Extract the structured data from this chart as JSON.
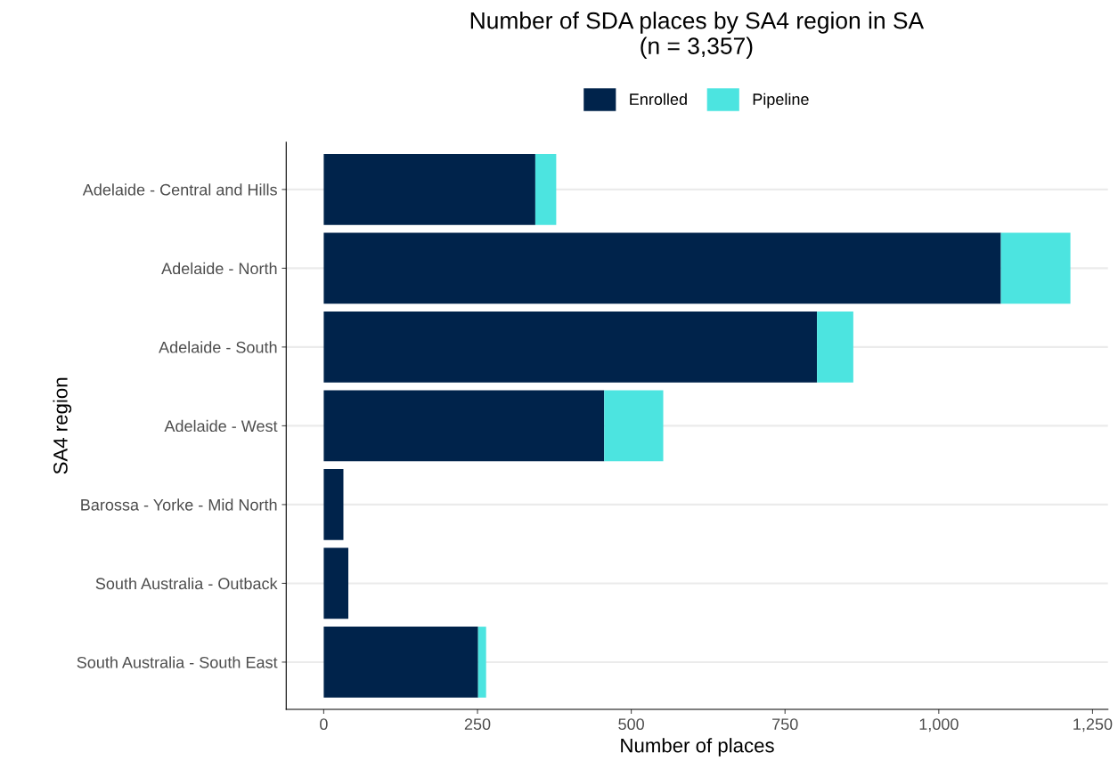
{
  "chart_data": {
    "type": "bar",
    "orientation": "horizontal",
    "stacked": true,
    "title": "Number of SDA places by SA4 region in SA\n(n = 3,357)",
    "xlabel": "Number of places",
    "ylabel": "SA4 region",
    "categories": [
      "Adelaide - Central and Hills",
      "Adelaide - North",
      "Adelaide - South",
      "Adelaide - West",
      "Barossa - Yorke - Mid North",
      "South Australia - Outback",
      "South Australia - South East"
    ],
    "series": [
      {
        "name": "Enrolled",
        "color": "#00234b",
        "values": [
          344,
          1101,
          802,
          456,
          32,
          40,
          251
        ]
      },
      {
        "name": "Pipeline",
        "color": "#4ce4e0",
        "values": [
          34,
          113,
          59,
          96,
          0,
          0,
          13
        ]
      }
    ],
    "xlim": [
      -61,
      1275
    ],
    "xticks": [
      0,
      250,
      500,
      750,
      {
        "value": 1000,
        "label": "1,000"
      },
      {
        "value": 1250,
        "label": "1,250"
      }
    ],
    "grid": "y",
    "legend": "top"
  }
}
